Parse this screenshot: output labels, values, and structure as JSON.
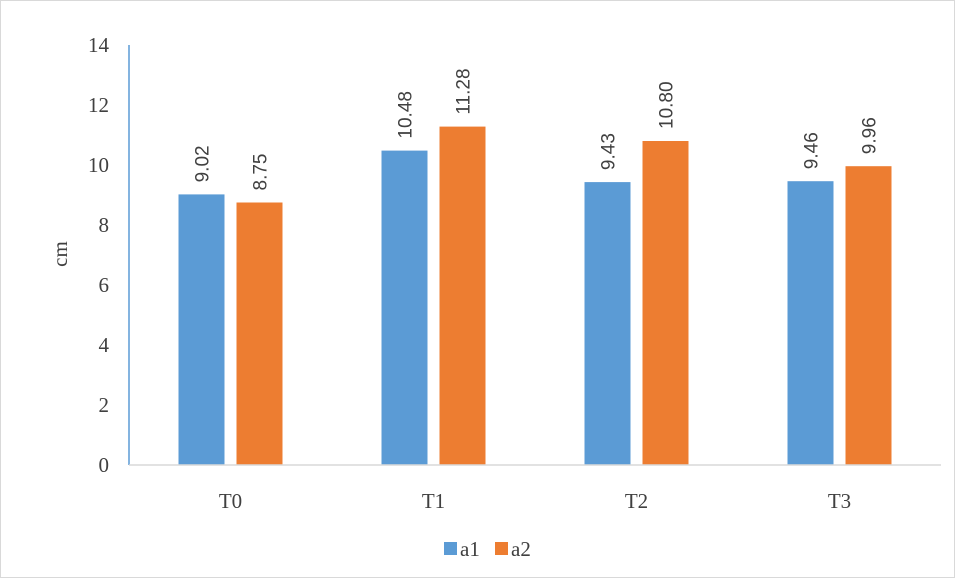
{
  "chart_data": {
    "type": "bar",
    "categories": [
      "T0",
      "T1",
      "T2",
      "T3"
    ],
    "series": [
      {
        "name": "a1",
        "values": [
          9.02,
          10.48,
          9.43,
          9.46
        ],
        "data_labels": [
          "9.02",
          "10.48",
          "9.43",
          "9.46"
        ],
        "color": "#5b9bd5"
      },
      {
        "name": "a2",
        "values": [
          8.75,
          11.28,
          10.8,
          9.96
        ],
        "data_labels": [
          "8.75",
          "11.28",
          "10.80",
          "9.96"
        ],
        "color": "#ed7d31"
      }
    ],
    "title": "",
    "xlabel": "",
    "ylabel": "cm",
    "ylim": [
      0,
      14
    ],
    "yticks": [
      0,
      2,
      4,
      6,
      8,
      10,
      12,
      14
    ],
    "ytick_labels": [
      "0",
      "2",
      "4",
      "6",
      "8",
      "10",
      "12",
      "14"
    ],
    "grid": false,
    "legend": "bottom",
    "axis_color": "#5b9bd5"
  }
}
